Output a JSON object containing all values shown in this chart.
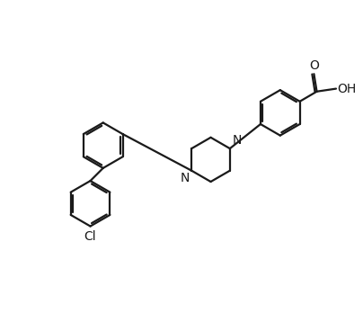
{
  "bg_color": "#ffffff",
  "line_color": "#1a1a1a",
  "line_width": 1.6,
  "text_color": "#1a1a1a",
  "font_size": 10,
  "figsize": [
    4.04,
    3.58
  ],
  "dpi": 100,
  "xlim": [
    -1.0,
    11.5
  ],
  "ylim": [
    -0.5,
    9.5
  ]
}
